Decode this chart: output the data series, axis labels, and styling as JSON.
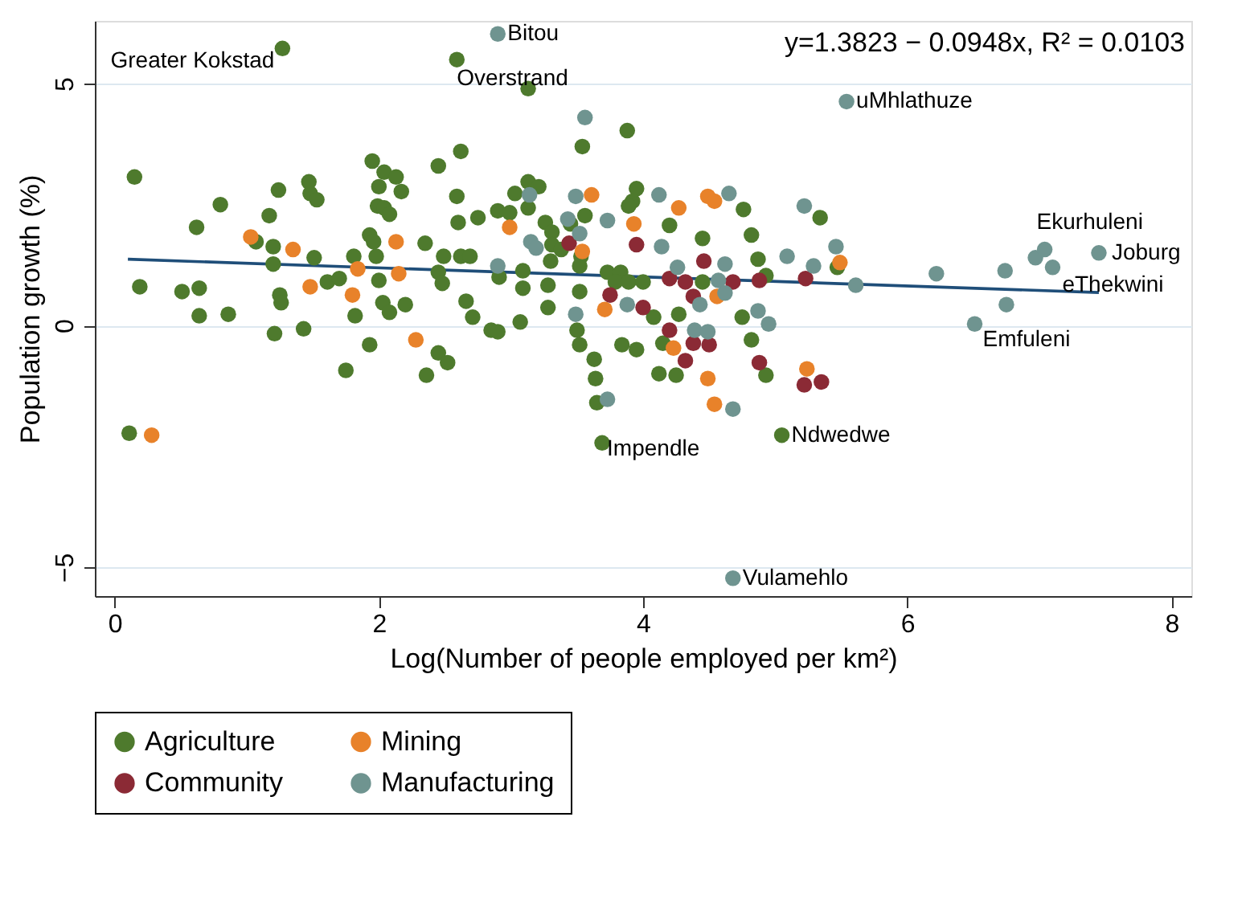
{
  "chart_data": {
    "type": "scatter",
    "xlabel": "Log(Number of people employed per km²)",
    "ylabel": "Population growth (%)",
    "xlim": [
      -0.15,
      8.15
    ],
    "xticks": [
      0,
      2,
      4,
      6,
      8
    ],
    "ylim": [
      -5.6,
      6.3
    ],
    "yticks": [
      -5,
      0,
      5
    ],
    "grid": "y",
    "legend": "bottom",
    "marker": "circle",
    "series": [
      {
        "name": "Agriculture",
        "color": "#4e7a2d",
        "x": [
          1.27,
          2.59,
          0.15,
          0.62,
          0.8,
          0.19,
          0.51,
          0.64,
          0.64,
          0.86,
          1.17,
          1.24,
          1.2,
          1.2,
          1.07,
          1.25,
          1.26,
          1.21,
          1.43,
          1.47,
          1.48,
          1.53,
          1.51,
          1.61,
          1.7,
          1.75,
          1.93,
          1.82,
          1.81,
          1.93,
          1.96,
          1.98,
          2.0,
          1.95,
          2.0,
          2.04,
          2.13,
          2.17,
          1.99,
          2.04,
          2.08,
          2.03,
          2.08,
          2.2,
          2.35,
          2.45,
          2.62,
          2.59,
          2.6,
          2.49,
          2.62,
          2.69,
          2.45,
          2.48,
          2.66,
          2.45,
          2.52,
          2.36,
          0.11,
          3.13,
          3.88,
          3.54,
          2.75,
          2.9,
          3.03,
          3.13,
          3.21,
          3.13,
          2.99,
          3.26,
          3.31,
          3.45,
          3.56,
          3.95,
          3.92,
          3.89,
          4.2,
          4.76,
          4.45,
          4.82,
          5.34,
          4.87,
          4.93,
          2.91,
          3.09,
          3.09,
          3.28,
          3.3,
          3.31,
          3.38,
          3.53,
          3.52,
          2.71,
          2.85,
          2.9,
          3.07,
          3.28,
          3.52,
          3.5,
          3.52,
          3.63,
          3.64,
          3.65,
          3.69,
          3.73,
          3.83,
          3.79,
          3.89,
          4.0,
          4.08,
          4.27,
          4.45,
          3.84,
          3.95,
          4.15,
          4.12,
          4.25,
          4.75,
          4.82,
          4.93,
          5.05,
          5.47
        ],
        "values": [
          5.73,
          5.5,
          3.07,
          2.03,
          2.5,
          0.8,
          0.7,
          0.77,
          0.2,
          0.23,
          2.27,
          2.8,
          1.63,
          1.27,
          1.73,
          0.63,
          0.47,
          -0.17,
          -0.07,
          2.97,
          2.73,
          2.6,
          1.4,
          0.9,
          0.97,
          -0.93,
          -0.4,
          0.2,
          1.43,
          1.87,
          1.73,
          1.43,
          0.93,
          3.4,
          2.87,
          3.17,
          3.07,
          2.77,
          2.47,
          2.43,
          2.3,
          0.47,
          0.27,
          0.43,
          1.7,
          3.3,
          3.6,
          2.67,
          2.13,
          1.43,
          1.43,
          1.43,
          1.1,
          0.87,
          0.5,
          -0.57,
          -0.77,
          -1.03,
          -2.23,
          4.9,
          4.03,
          3.7,
          2.23,
          2.37,
          2.73,
          2.97,
          2.87,
          2.43,
          2.33,
          2.13,
          1.93,
          2.1,
          2.27,
          2.83,
          2.57,
          2.47,
          2.07,
          2.4,
          1.8,
          1.87,
          2.23,
          1.37,
          1.03,
          1.0,
          1.13,
          0.77,
          0.83,
          1.33,
          1.67,
          1.57,
          1.43,
          1.23,
          0.17,
          -0.1,
          -0.13,
          0.07,
          0.37,
          0.7,
          -0.1,
          -0.4,
          -0.7,
          -1.1,
          -1.6,
          -2.43,
          1.1,
          1.1,
          0.9,
          0.9,
          0.9,
          0.17,
          0.23,
          0.9,
          -0.4,
          -0.5,
          -0.37,
          -1.0,
          -1.03,
          0.17,
          -0.3,
          -1.03,
          -2.27,
          1.2
        ]
      },
      {
        "name": "Mining",
        "color": "#e8822a",
        "x": [
          1.03,
          1.35,
          1.48,
          1.84,
          1.8,
          2.13,
          2.15,
          2.28,
          0.28,
          2.99,
          3.61,
          3.93,
          4.27,
          4.49,
          4.54,
          3.54,
          3.71,
          4.56,
          4.23,
          4.49,
          4.54,
          5.24,
          5.49
        ],
        "values": [
          1.83,
          1.57,
          0.8,
          1.17,
          0.63,
          1.73,
          1.07,
          -0.3,
          -2.27,
          2.03,
          2.7,
          2.1,
          2.43,
          2.67,
          2.57,
          1.53,
          0.33,
          0.6,
          -0.47,
          -1.1,
          -1.63,
          -0.9,
          1.3
        ]
      },
      {
        "name": "Community",
        "color": "#8b2a35",
        "x": [
          3.95,
          5.23,
          4.88,
          3.44,
          3.75,
          4.0,
          4.2,
          4.2,
          4.32,
          4.38,
          4.46,
          4.68,
          4.38,
          4.5,
          4.32,
          4.88,
          5.22,
          5.35
        ],
        "values": [
          1.67,
          0.97,
          0.93,
          1.7,
          0.63,
          0.37,
          -0.1,
          0.97,
          0.9,
          0.6,
          1.33,
          0.9,
          -0.37,
          -0.4,
          -0.73,
          -0.77,
          -1.23,
          -1.17
        ]
      },
      {
        "name": "Manufacturing",
        "color": "#6f9490",
        "x": [
          2.9,
          3.56,
          3.14,
          3.43,
          3.52,
          3.49,
          3.73,
          4.12,
          4.65,
          4.14,
          5.22,
          5.09,
          5.29,
          2.9,
          3.15,
          3.19,
          3.49,
          3.73,
          3.88,
          4.26,
          4.43,
          4.57,
          4.62,
          4.62,
          4.39,
          4.49,
          4.68,
          4.87,
          4.95,
          5.54,
          5.46,
          5.61,
          6.22,
          6.74,
          6.97,
          7.04,
          7.1,
          7.45,
          6.75,
          6.51,
          4.68
        ],
        "values": [
          6.03,
          4.3,
          2.7,
          2.2,
          1.9,
          2.67,
          2.17,
          2.7,
          2.73,
          1.63,
          2.47,
          1.43,
          1.23,
          1.23,
          1.73,
          1.6,
          0.23,
          -1.53,
          0.43,
          1.2,
          0.43,
          0.93,
          1.27,
          0.67,
          -0.1,
          -0.13,
          -1.73,
          0.3,
          0.03,
          4.63,
          1.63,
          0.83,
          1.07,
          1.13,
          1.4,
          1.57,
          1.2,
          1.5,
          0.43,
          0.03,
          -5.23
        ]
      },
      {
        "type": "line",
        "marker": "none",
        "color": "#1f4e79",
        "x": [
          0.1,
          7.45
        ],
        "values": [
          1.37,
          0.68
        ]
      }
    ],
    "annotations": [
      "y=1.3823 − 0.0948x, R² = 0.0103",
      {
        "text": "Greater Kokstad",
        "x": 1.27,
        "y": 5.73
      },
      {
        "text": "Overstrand",
        "x": 2.59,
        "y": 5.5
      },
      {
        "text": "Bitou",
        "x": 2.9,
        "y": 6.03
      },
      {
        "text": "uMhlathuze",
        "x": 5.54,
        "y": 4.63
      },
      {
        "text": "Ekurhuleni",
        "x": 7.04,
        "y": 1.57
      },
      {
        "text": "Joburg",
        "x": 7.45,
        "y": 1.5
      },
      {
        "text": "eThekwini",
        "x": 7.1,
        "y": 1.2
      },
      {
        "text": "Emfuleni",
        "x": 6.51,
        "y": 0.03
      },
      {
        "text": "Impendle",
        "x": 3.69,
        "y": -2.43
      },
      {
        "text": "Ndwedwe",
        "x": 5.05,
        "y": -2.27
      },
      {
        "text": "Vulamehlo",
        "x": 4.68,
        "y": -5.23
      }
    ]
  }
}
